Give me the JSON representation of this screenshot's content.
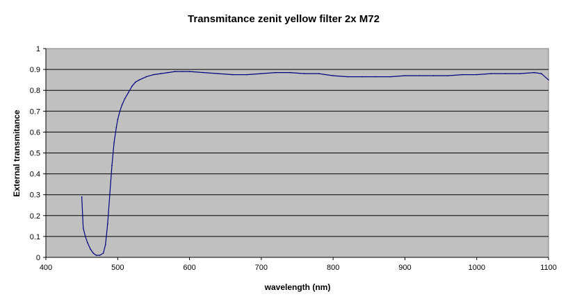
{
  "chart_data": {
    "type": "line",
    "title": "Transmitance zenit yellow filter 2x M72",
    "xlabel": "wavelength (nm)",
    "ylabel": "External transmitance",
    "xlim": [
      400,
      1100
    ],
    "ylim": [
      0,
      1
    ],
    "x_ticks": [
      "400",
      "500",
      "600",
      "700",
      "800",
      "900",
      "1000",
      "1100"
    ],
    "y_ticks": [
      "0",
      "0.1",
      "0.2",
      "0.3",
      "0.4",
      "0.5",
      "0.6",
      "0.7",
      "0.8",
      "0.9",
      "1"
    ],
    "grid": "horizontal",
    "legend": "none",
    "plot_background": "#c0c0c0",
    "series": [
      {
        "color": "#000080",
        "x": [
          450,
          452,
          455,
          458,
          462,
          466,
          470,
          475,
          480,
          483,
          486,
          489,
          492,
          495,
          498,
          500,
          503,
          506,
          510,
          515,
          520,
          525,
          530,
          540,
          550,
          560,
          570,
          580,
          590,
          600,
          620,
          640,
          660,
          680,
          700,
          720,
          740,
          760,
          780,
          800,
          820,
          840,
          860,
          880,
          900,
          920,
          940,
          960,
          980,
          1000,
          1020,
          1040,
          1060,
          1080,
          1090,
          1100
        ],
        "y": [
          0.29,
          0.14,
          0.1,
          0.07,
          0.04,
          0.02,
          0.01,
          0.01,
          0.02,
          0.06,
          0.16,
          0.3,
          0.44,
          0.55,
          0.62,
          0.66,
          0.7,
          0.73,
          0.76,
          0.79,
          0.82,
          0.84,
          0.85,
          0.865,
          0.875,
          0.88,
          0.885,
          0.89,
          0.89,
          0.89,
          0.885,
          0.88,
          0.875,
          0.875,
          0.88,
          0.885,
          0.885,
          0.88,
          0.88,
          0.87,
          0.865,
          0.865,
          0.865,
          0.865,
          0.87,
          0.87,
          0.87,
          0.87,
          0.875,
          0.875,
          0.88,
          0.88,
          0.88,
          0.885,
          0.88,
          0.85
        ]
      }
    ]
  }
}
